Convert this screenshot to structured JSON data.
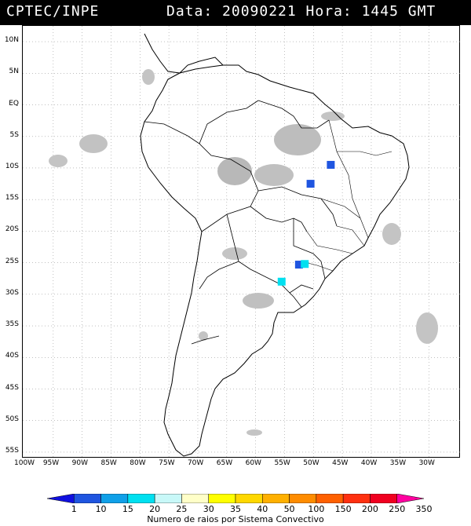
{
  "header": {
    "agency": "CPTEC/INPE",
    "datetime": "Data: 20090221  Hora: 1445 GMT"
  },
  "map": {
    "projection": "lat-lon",
    "lon_range": [
      -100,
      -25
    ],
    "lat_range": [
      -56,
      14
    ],
    "grid": "dotted every 5 degrees",
    "lat_labels": [
      "10N",
      "5N",
      "EQ",
      "5S",
      "10S",
      "15S",
      "20S",
      "25S",
      "30S",
      "35S",
      "40S",
      "45S",
      "50S",
      "55S"
    ],
    "lon_labels": [
      "100W",
      "95W",
      "90W",
      "85W",
      "80W",
      "75W",
      "70W",
      "65W",
      "60W",
      "55W",
      "50W",
      "45W",
      "40W",
      "35W",
      "30W"
    ],
    "cloud_color": "#b8b8b8",
    "coast_color": "#000000",
    "lightning_clusters": [
      {
        "lon": -47.0,
        "lat": -9.5,
        "class": "10-15",
        "color": "#1f55e0"
      },
      {
        "lon": -50.5,
        "lat": -12.5,
        "class": "10-15",
        "color": "#1f55e0"
      },
      {
        "lon": -52.5,
        "lat": -25.3,
        "class": "10-15",
        "color": "#1f55e0"
      },
      {
        "lon": -55.5,
        "lat": -28.0,
        "class": "20-25",
        "color": "#00e0f0"
      },
      {
        "lon": -51.5,
        "lat": -25.2,
        "class": "20-25",
        "color": "#00e0f0"
      }
    ]
  },
  "legend": {
    "labels": [
      "1",
      "10",
      "15",
      "20",
      "25",
      "30",
      "35",
      "40",
      "50",
      "100",
      "150",
      "200",
      "250",
      "350"
    ],
    "colors": [
      "#1010e0",
      "#1f55e0",
      "#10a0e8",
      "#00e0f0",
      "#c8f8f8",
      "#ffffc8",
      "#ffff00",
      "#ffd800",
      "#ffb000",
      "#ff8c00",
      "#ff6000",
      "#ff3010",
      "#f00020",
      "#ff00a0"
    ],
    "caption": "Numero de raios por Sistema Convectivo"
  }
}
